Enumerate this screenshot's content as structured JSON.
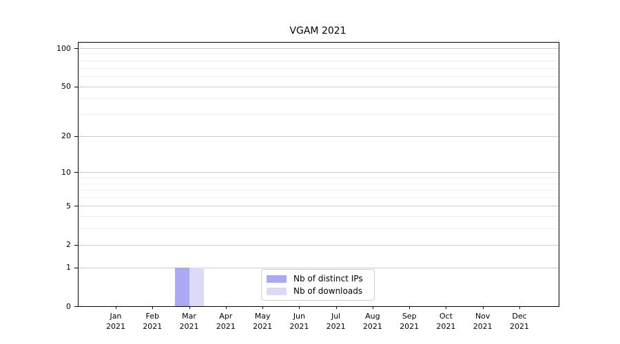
{
  "chart_data": {
    "type": "bar",
    "title": "VGAM 2021",
    "categories": [
      "Jan 2021",
      "Feb 2021",
      "Mar 2021",
      "Apr 2021",
      "May 2021",
      "Jun 2021",
      "Jul 2021",
      "Aug 2021",
      "Sep 2021",
      "Oct 2021",
      "Nov 2021",
      "Dec 2021"
    ],
    "series": [
      {
        "name": "Nb of distinct IPs",
        "color": "#a9a9f4",
        "values": [
          0,
          0,
          1,
          0,
          0,
          0,
          0,
          0,
          0,
          0,
          0,
          0
        ]
      },
      {
        "name": "Nb of downloads",
        "color": "#dbdbf8",
        "values": [
          0,
          0,
          1,
          0,
          0,
          0,
          0,
          0,
          0,
          0,
          0,
          0
        ]
      }
    ],
    "xlabel": "",
    "ylabel": "",
    "y_scale": "log1p",
    "y_ticks": [
      0,
      1,
      2,
      5,
      10,
      20,
      50,
      100
    ],
    "y_minor_ticks": [
      3,
      4,
      6,
      7,
      8,
      9,
      30,
      40,
      60,
      70,
      80,
      90
    ],
    "ylim": [
      0,
      110
    ],
    "grid": true,
    "legend_position": "lower center"
  }
}
